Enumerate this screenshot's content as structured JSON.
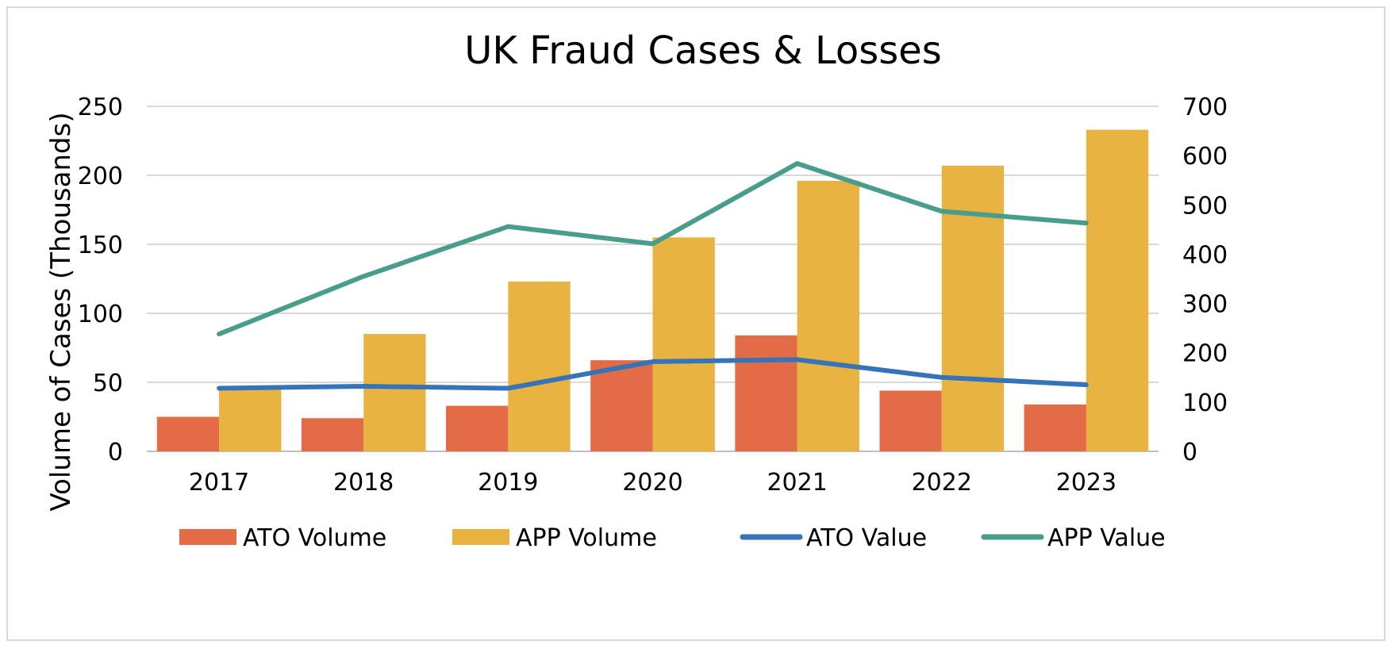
{
  "chart_data": {
    "type": "bar",
    "title": "UK Fraud Cases & Losses",
    "ylabel": "Volume of Cases (Thousands)",
    "y2label": "",
    "categories": [
      "2017",
      "2018",
      "2019",
      "2020",
      "2021",
      "2022",
      "2023"
    ],
    "ylim": [
      0,
      250
    ],
    "y_ticks": [
      0,
      50,
      100,
      150,
      200,
      250
    ],
    "y2lim": [
      0,
      700
    ],
    "y2_ticks": [
      0,
      100,
      200,
      300,
      400,
      500,
      600,
      700
    ],
    "grid": true,
    "legend_position": "bottom",
    "series": [
      {
        "name": "ATO Volume",
        "kind": "bar",
        "axis": "left",
        "color": "#E36C47",
        "values": [
          25,
          24,
          33,
          66,
          84,
          44,
          34
        ]
      },
      {
        "name": "APP Volume",
        "kind": "bar",
        "axis": "left",
        "color": "#E8B341",
        "values": [
          45,
          85,
          123,
          155,
          196,
          207,
          233
        ]
      },
      {
        "name": "ATO Value",
        "kind": "line",
        "axis": "right",
        "color": "#3574B8",
        "values": [
          128,
          132,
          128,
          182,
          186,
          150,
          135
        ]
      },
      {
        "name": "APP Value",
        "kind": "line",
        "axis": "right",
        "color": "#489D8B",
        "values": [
          238,
          355,
          456,
          421,
          584,
          487,
          463
        ]
      }
    ]
  }
}
